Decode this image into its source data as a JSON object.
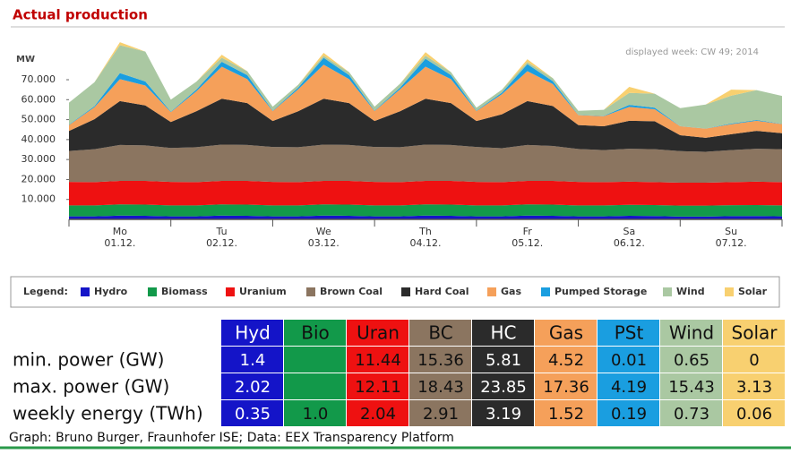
{
  "chart_data": {
    "type": "stacked_area",
    "title": "Actual production",
    "y_unit": "MW",
    "annotation": "displayed week: CW 49; 2014",
    "legend_title": "Legend:",
    "categories": [
      null,
      null,
      "Mo 01.12.",
      null,
      null,
      null,
      "Tu 02.12.",
      null,
      null,
      null,
      "We 03.12.",
      null,
      null,
      null,
      "Th 04.12.",
      null,
      null,
      null,
      "Fr 05.12.",
      null,
      null,
      null,
      "Sa 06.12.",
      null,
      null,
      null,
      "Su 07.12.",
      null,
      null
    ],
    "ylim": [
      0,
      92000
    ],
    "yticks": [
      {
        "value": 10000,
        "label": "10.000"
      },
      {
        "value": 20000,
        "label": "20.000"
      },
      {
        "value": 30000,
        "label": "30.000"
      },
      {
        "value": 40000,
        "label": "40.000"
      },
      {
        "value": 50000,
        "label": "50.000"
      },
      {
        "value": 60000,
        "label": "60.000"
      },
      {
        "value": 70000,
        "label": "70.000"
      }
    ],
    "grid": false,
    "series": [
      {
        "name": "Hydro",
        "color": "#1414c8",
        "values": [
          1500,
          1500,
          1900,
          1800,
          1500,
          1500,
          1900,
          1800,
          1500,
          1500,
          1900,
          1800,
          1500,
          1500,
          1900,
          1800,
          1500,
          1500,
          1900,
          1800,
          1500,
          1500,
          1800,
          1700,
          1400,
          1400,
          1600,
          1700,
          1500
        ]
      },
      {
        "name": "Biomass",
        "color": "#12994a",
        "values": [
          5500,
          5500,
          5600,
          5600,
          5500,
          5500,
          5600,
          5600,
          5500,
          5500,
          5600,
          5600,
          5500,
          5500,
          5600,
          5600,
          5500,
          5500,
          5600,
          5600,
          5500,
          5500,
          5500,
          5500,
          5500,
          5500,
          5500,
          5500,
          5500
        ]
      },
      {
        "name": "Uranium",
        "color": "#ee1111",
        "values": [
          11800,
          11700,
          11800,
          11900,
          11800,
          11700,
          11800,
          11900,
          11800,
          11700,
          11800,
          11900,
          11800,
          11700,
          11800,
          11900,
          11800,
          11700,
          11800,
          11900,
          11800,
          11700,
          11600,
          11500,
          11500,
          11500,
          11600,
          11700,
          11700
        ]
      },
      {
        "name": "Brown Coal",
        "color": "#8b7560",
        "values": [
          15500,
          16500,
          18000,
          17800,
          17000,
          17500,
          18200,
          18000,
          17500,
          17500,
          18200,
          18000,
          17500,
          17500,
          18200,
          18000,
          17500,
          17000,
          18000,
          17500,
          16500,
          16000,
          16500,
          16500,
          15800,
          15500,
          16000,
          16500,
          16500
        ]
      },
      {
        "name": "Hard Coal",
        "color": "#2b2b2b",
        "values": [
          10000,
          15000,
          22000,
          20000,
          13000,
          18000,
          23000,
          21000,
          13000,
          18000,
          23000,
          21000,
          13000,
          18000,
          23000,
          21000,
          13000,
          17000,
          22000,
          20000,
          12000,
          12000,
          14000,
          14000,
          8000,
          7000,
          8000,
          9000,
          8000
        ]
      },
      {
        "name": "Gas",
        "color": "#f5a05a",
        "values": [
          3000,
          6000,
          11000,
          10000,
          5000,
          10000,
          16000,
          12000,
          5000,
          11000,
          17000,
          12000,
          5000,
          11000,
          16000,
          12000,
          5000,
          10000,
          15000,
          11000,
          5000,
          5000,
          7000,
          6000,
          4500,
          4600,
          5000,
          5000,
          4600
        ]
      },
      {
        "name": "Pumped Storage",
        "color": "#1a9ee0",
        "values": [
          200,
          500,
          3000,
          2000,
          200,
          800,
          2500,
          2000,
          200,
          800,
          3500,
          2000,
          200,
          800,
          4000,
          2000,
          200,
          800,
          3500,
          1500,
          100,
          200,
          1000,
          800,
          50,
          50,
          300,
          400,
          100
        ]
      },
      {
        "name": "Wind",
        "color": "#aac8a2",
        "values": [
          11000,
          12000,
          14000,
          15000,
          6000,
          4000,
          2000,
          2000,
          2000,
          1500,
          1000,
          1500,
          2000,
          2000,
          1500,
          1500,
          1500,
          1500,
          1000,
          1500,
          2000,
          3000,
          6000,
          7000,
          9000,
          12000,
          14000,
          15000,
          14000
        ]
      },
      {
        "name": "Solar",
        "color": "#f8d070",
        "values": [
          0,
          0,
          1500,
          0,
          0,
          0,
          1500,
          0,
          0,
          0,
          1500,
          0,
          0,
          0,
          1800,
          0,
          0,
          0,
          1500,
          0,
          0,
          0,
          3000,
          0,
          0,
          0,
          3000,
          0,
          0
        ]
      }
    ]
  },
  "table": {
    "header": [
      "Hyd",
      "Bio",
      "Uran",
      "BC",
      "HC",
      "Gas",
      "PSt",
      "Wind",
      "Solar"
    ],
    "rows": [
      {
        "label": "min. power (GW)",
        "cells": [
          "1.4",
          null,
          "11.44",
          "15.36",
          "5.81",
          "4.52",
          "0.01",
          "0.65",
          "0"
        ]
      },
      {
        "label": "max. power (GW)",
        "cells": [
          "2.02",
          null,
          "12.11",
          "18.43",
          "23.85",
          "17.36",
          "4.19",
          "15.43",
          "3.13"
        ]
      },
      {
        "label": "weekly energy (TWh)",
        "cells": [
          "0.35",
          "1.0",
          "2.04",
          "2.91",
          "3.19",
          "1.52",
          "0.19",
          "0.73",
          "0.06"
        ]
      }
    ]
  },
  "footer": "Graph: Bruno Burger, Fraunhofer ISE; Data: EEX Transparency Platform"
}
